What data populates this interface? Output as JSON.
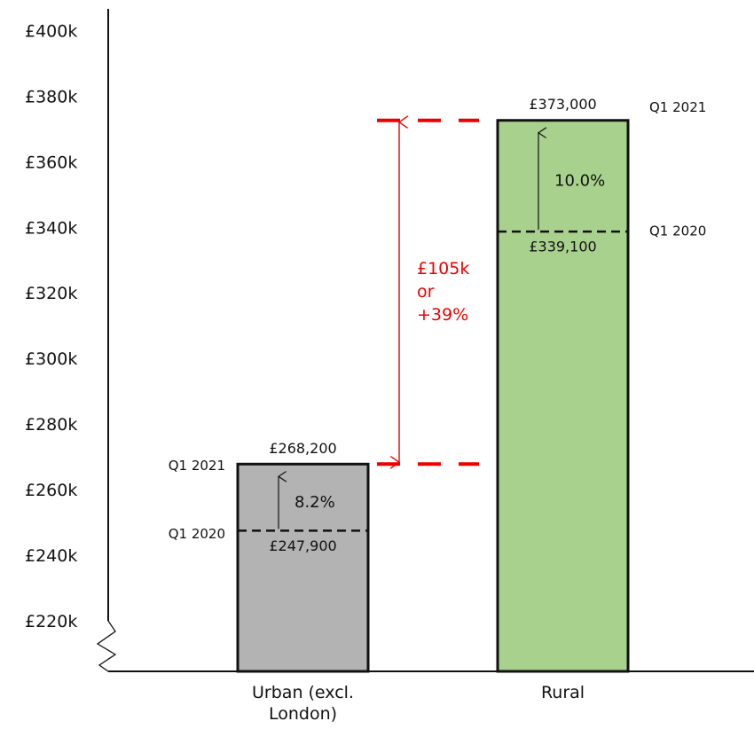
{
  "chart_data": {
    "type": "bar",
    "categories": [
      "Urban (excl. London)",
      "Rural"
    ],
    "colors": [
      "#b3b3b3",
      "#a9d18e"
    ],
    "series": [
      {
        "name": "Q1 2020",
        "values": [
          247900,
          339100
        ],
        "value_labels": [
          "£247,900",
          "£339,100"
        ]
      },
      {
        "name": "Q1 2021",
        "values": [
          268200,
          373000
        ],
        "value_labels": [
          "£268,200",
          "£373,000"
        ]
      }
    ],
    "change_labels": [
      "8.2%",
      "10.0%"
    ],
    "difference_annotation": [
      "£105k",
      "or",
      "+39%"
    ],
    "ylim": [
      205000,
      407000
    ],
    "yticks": [
      {
        "value": 220000,
        "label": "£220k"
      },
      {
        "value": 240000,
        "label": "£240k"
      },
      {
        "value": 260000,
        "label": "£260k"
      },
      {
        "value": 280000,
        "label": "£280k"
      },
      {
        "value": 300000,
        "label": "£300k"
      },
      {
        "value": 320000,
        "label": "£320k"
      },
      {
        "value": 340000,
        "label": "£340k"
      },
      {
        "value": 360000,
        "label": "£360k"
      },
      {
        "value": 380000,
        "label": "£380k"
      },
      {
        "value": 400000,
        "label": "£400k"
      }
    ],
    "grid": false
  }
}
